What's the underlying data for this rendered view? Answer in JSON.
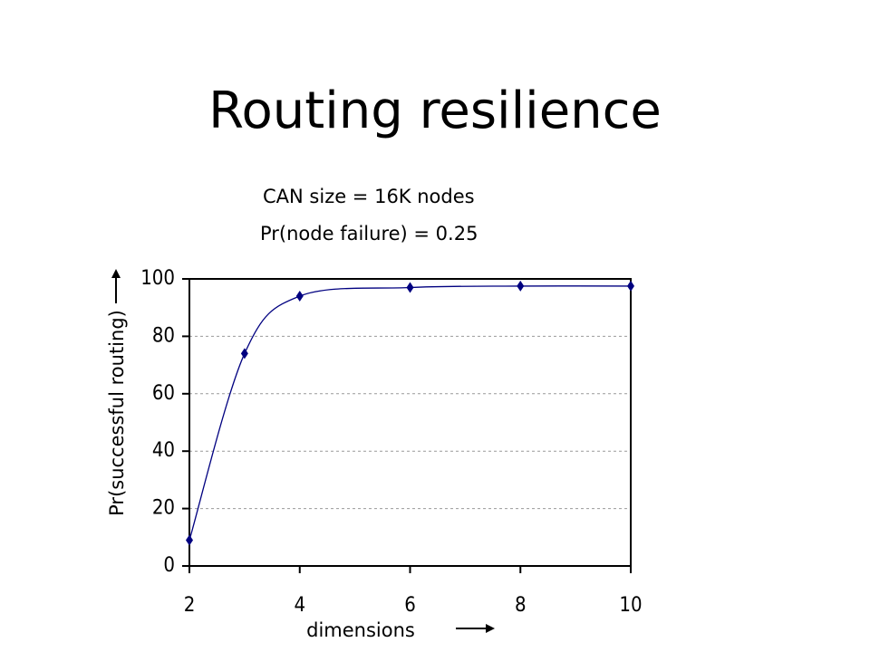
{
  "chart_data": {
    "type": "line",
    "title": "Routing resilience",
    "annotations": [
      "CAN size = 16K nodes",
      "Pr(node failure) = 0.25"
    ],
    "x_label": "dimensions",
    "y_label": "Pr(successful routing)",
    "x": [
      2,
      3,
      4,
      6,
      8,
      10
    ],
    "series": [
      {
        "color": "#000080",
        "values": [
          9,
          74,
          94,
          97,
          97.5,
          97.5
        ]
      }
    ],
    "xlim": [
      2,
      10
    ],
    "xticks": [
      2,
      4,
      6,
      8,
      10
    ],
    "ylim": [
      0,
      100
    ],
    "yticks": [
      0,
      20,
      40,
      60,
      80,
      100
    ],
    "grid": true
  }
}
